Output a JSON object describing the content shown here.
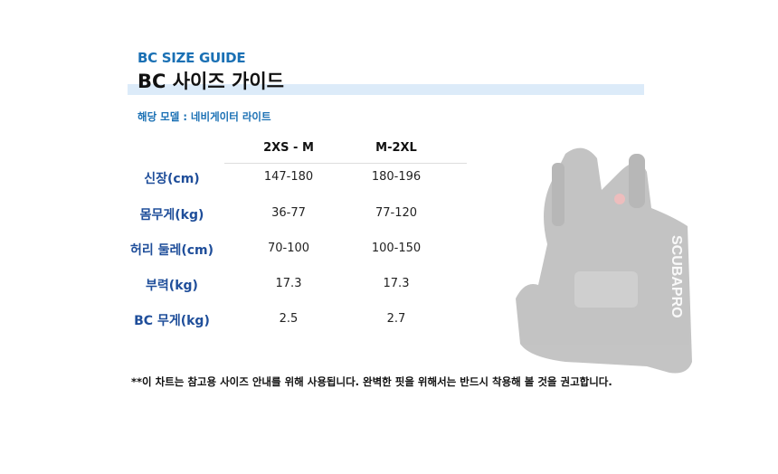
{
  "header": {
    "subtitle": "BC SIZE GUIDE",
    "title": "BC 사이즈 가이드",
    "model": "해당 모델 : 네비게이터 라이트"
  },
  "table": {
    "columns": [
      "2XS - M",
      "M-2XL"
    ],
    "rows": [
      {
        "label": "신장(cm)",
        "values": [
          "147-180",
          "180-196"
        ]
      },
      {
        "label": "몸무게(kg)",
        "values": [
          "36-77",
          "77-120"
        ]
      },
      {
        "label": "허리 둘레(cm)",
        "values": [
          "70-100",
          "100-150"
        ]
      },
      {
        "label": "부력(kg)",
        "values": [
          "17.3",
          "17.3"
        ]
      },
      {
        "label": "BC 무게(kg)",
        "values": [
          "2.5",
          "2.7"
        ]
      }
    ]
  },
  "footnote": "**이 차트는 참고용 사이즈 안내를 위해 사용됩니다. 완벽한 핏을 위해서는 반드시 착용해 볼 것을 권고합니다.",
  "product_image": {
    "brand_text": "SCUBAPRO"
  },
  "colors": {
    "accent": "#1a70b4",
    "label": "#1f4e9a",
    "highlight_bar": "#dcebf9"
  }
}
